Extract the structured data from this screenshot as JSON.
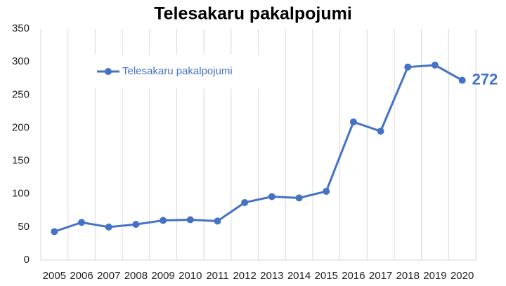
{
  "chart_data": {
    "type": "line",
    "title": "Telesakaru pakalpojumi",
    "categories": [
      "2005",
      "2006",
      "2007",
      "2008",
      "2009",
      "2010",
      "2011",
      "2012",
      "2013",
      "2014",
      "2015",
      "2016",
      "2017",
      "2018",
      "2019",
      "2020"
    ],
    "series": [
      {
        "name": "Telesakaru pakalpojumi",
        "color": "#4472c4",
        "values": [
          43,
          57,
          50,
          54,
          60,
          61,
          59,
          87,
          96,
          94,
          104,
          209,
          195,
          292,
          295,
          272
        ]
      }
    ],
    "ylim": [
      0,
      350
    ],
    "yticks": [
      0,
      50,
      100,
      150,
      200,
      250,
      300,
      350
    ],
    "grid": true
  }
}
